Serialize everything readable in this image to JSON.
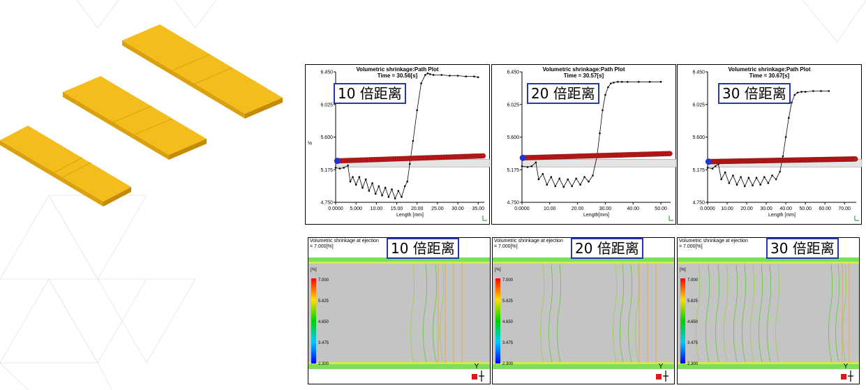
{
  "colors": {
    "part_yellow": "#f5bd1c",
    "part_edge": "#c48a0a",
    "path_red": "#b81818",
    "path_blue": "#2333d0",
    "badge_border": "#2438a8"
  },
  "chart_data": [
    {
      "type": "line",
      "title": "Volumetric shrinkage:Path Plot",
      "subtitle": "Time = 30.56[s]",
      "badge": "10 倍距离",
      "xlabel": "Length [mm]",
      "ylabel": "%",
      "xlim": [
        0,
        36.5
      ],
      "ylim": [
        4.75,
        6.45
      ],
      "xticks": [
        0,
        5,
        10,
        15,
        20,
        25,
        30,
        35
      ],
      "xtick_labels": [
        "0.0000",
        "5.000",
        "10.00",
        "15.00",
        "20.00",
        "25.00",
        "30.00",
        "35.00"
      ],
      "yticks": [
        4.75,
        5.175,
        5.6,
        6.025,
        6.45
      ],
      "ytick_labels": [
        "4.750",
        "5.175",
        "5.600",
        "6.025",
        "6.450"
      ],
      "band": [
        5.21,
        5.31
      ],
      "series": [
        {
          "kind": "shrinkage",
          "x": [
            0.0,
            1.0,
            2.0,
            3.0,
            3.6,
            4.2,
            5.0,
            5.8,
            6.6,
            7.4,
            8.2,
            9.0,
            9.8,
            10.6,
            11.4,
            12.2,
            13.0,
            13.8,
            14.6,
            15.4,
            16.2,
            17.0,
            17.6,
            18.2,
            19.0,
            20.0,
            21.0,
            22.0,
            22.6,
            23.2,
            24.0,
            26.0,
            28.0,
            30.0,
            32.0,
            34.0,
            35.0
          ],
          "y": [
            5.2,
            5.19,
            5.2,
            5.23,
            5.02,
            5.08,
            4.98,
            5.08,
            4.94,
            5.05,
            4.9,
            5.0,
            4.86,
            4.96,
            4.84,
            4.94,
            4.82,
            4.92,
            4.8,
            4.9,
            4.82,
            4.96,
            5.02,
            5.25,
            5.55,
            5.95,
            6.3,
            6.41,
            6.43,
            6.42,
            6.41,
            6.41,
            6.4,
            6.4,
            6.39,
            6.39,
            6.38
          ]
        },
        {
          "kind": "path",
          "x_start": 0.4,
          "x_end": 36.2,
          "y_start": 5.29,
          "y_end": 5.355,
          "count": 64
        }
      ]
    },
    {
      "type": "line",
      "title": "Volumetric shrinkage:Path Plot",
      "subtitle": "Time = 30.57[s]",
      "badge": "20 倍距离",
      "xlabel": "Length[mm]",
      "ylabel": "",
      "xlim": [
        0,
        53.5
      ],
      "ylim": [
        4.75,
        6.45
      ],
      "xticks": [
        0,
        10,
        20,
        30,
        40,
        50
      ],
      "xtick_labels": [
        "0.0000",
        "10.00",
        "20.00",
        "30.00",
        "40.00",
        "50.00"
      ],
      "yticks": [
        4.75,
        5.175,
        5.6,
        6.025,
        6.45
      ],
      "ytick_labels": [
        "4.750",
        "5.175",
        "5.600",
        "6.025",
        "6.450"
      ],
      "band": [
        5.21,
        5.31
      ],
      "series": [
        {
          "kind": "shrinkage",
          "x": [
            0.0,
            2.0,
            3.5,
            5.0,
            6.0,
            7.5,
            9.0,
            10.5,
            12.0,
            13.5,
            15.0,
            16.5,
            18.0,
            19.5,
            21.0,
            22.5,
            24.0,
            25.5,
            27.0,
            28.0,
            29.0,
            30.0,
            31.0,
            32.0,
            33.0,
            34.5,
            36.0,
            38.0,
            42.0,
            46.0,
            50.0
          ],
          "y": [
            5.22,
            5.21,
            5.22,
            5.27,
            5.05,
            5.12,
            4.98,
            5.08,
            4.96,
            5.06,
            4.95,
            5.05,
            4.96,
            5.06,
            4.98,
            5.08,
            5.02,
            5.1,
            5.35,
            5.65,
            5.95,
            6.15,
            6.25,
            6.3,
            6.31,
            6.32,
            6.32,
            6.32,
            6.32,
            6.32,
            6.32
          ]
        },
        {
          "kind": "path",
          "x_start": 0.3,
          "x_end": 53.2,
          "y_start": 5.33,
          "y_end": 5.385,
          "count": 75
        }
      ]
    },
    {
      "type": "line",
      "title": "Volumetric shrinkage:Path Plot",
      "subtitle": "Time = 30.67[s]",
      "badge": "30 倍距离",
      "xlabel": "Length [mm]",
      "ylabel": "",
      "xlim": [
        0,
        76
      ],
      "ylim": [
        4.75,
        6.45
      ],
      "xticks": [
        0,
        10,
        20,
        30,
        40,
        50,
        60,
        70
      ],
      "xtick_labels": [
        "0.0000",
        "10.00",
        "20.00",
        "30.00",
        "40.00",
        "50.00",
        "60.00",
        "70.00"
      ],
      "yticks": [
        4.75,
        5.175,
        5.6,
        6.025,
        6.45
      ],
      "ytick_labels": [
        "4.750",
        "5.175",
        "5.600",
        "6.025",
        "6.450"
      ],
      "band": [
        5.21,
        5.31
      ],
      "series": [
        {
          "kind": "shrinkage",
          "x": [
            0.0,
            2.5,
            4.0,
            5.5,
            7.0,
            9.0,
            11.0,
            13.0,
            15.0,
            17.0,
            19.0,
            21.0,
            23.0,
            25.0,
            27.0,
            29.0,
            31.0,
            33.0,
            35.0,
            37.0,
            38.5,
            40.0,
            41.5,
            43.0,
            44.5,
            46.0,
            48.0,
            50.0,
            54.0,
            58.0,
            62.0
          ],
          "y": [
            5.2,
            5.19,
            5.22,
            5.25,
            5.05,
            5.14,
            5.0,
            5.1,
            4.98,
            5.08,
            4.96,
            5.07,
            4.97,
            5.07,
            4.98,
            5.08,
            5.0,
            5.1,
            5.05,
            5.15,
            5.35,
            5.6,
            5.85,
            6.05,
            6.15,
            6.18,
            6.19,
            6.19,
            6.2,
            6.2,
            6.2
          ]
        },
        {
          "kind": "path",
          "x_start": 0.5,
          "x_end": 75.5,
          "y_start": 5.28,
          "y_end": 5.315,
          "count": 120
        }
      ]
    },
    {
      "type": "heatmap",
      "title": "Volumetric shrinkage at ejection",
      "subtitle": "= 7.000[%]",
      "badge": "10 倍距离",
      "legend_unit": "[%]",
      "legend_ticks": [
        "7.000",
        "5.825",
        "4.650",
        "3.475",
        "2.300"
      ],
      "axis_letter": "Y"
    },
    {
      "type": "heatmap",
      "title": "Volumetric shrinkage at ejection",
      "subtitle": "= 7.000[%]",
      "badge": "20 倍距离",
      "legend_unit": "[%]",
      "legend_ticks": [
        "7.000",
        "5.825",
        "4.650",
        "3.475",
        "2.300"
      ],
      "axis_letter": "Y"
    },
    {
      "type": "heatmap",
      "title": "Volumetric shrinkage at ejection",
      "subtitle": "= 7.000[%]",
      "badge": "30 倍距离",
      "legend_unit": "[%]",
      "legend_ticks": [
        "7.000",
        "5.825",
        "4.650",
        "3.475",
        "2.300"
      ],
      "axis_letter": "Y"
    }
  ]
}
